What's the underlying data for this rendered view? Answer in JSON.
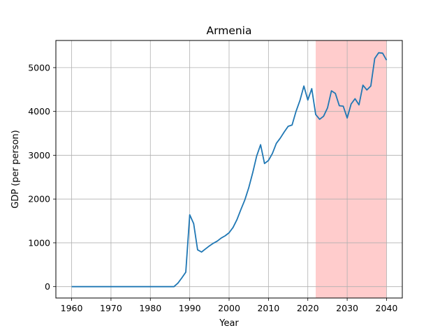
{
  "chart_data": {
    "type": "line",
    "title": "Armenia",
    "xlabel": "Year",
    "ylabel": "GDP (per person)",
    "xlim": [
      1956,
      2044
    ],
    "ylim": [
      -260,
      5620
    ],
    "grid": true,
    "x_ticks": [
      1960,
      1970,
      1980,
      1990,
      2000,
      2010,
      2020,
      2030,
      2040
    ],
    "y_ticks": [
      0,
      1000,
      2000,
      3000,
      4000,
      5000
    ],
    "highlight_span": {
      "x_start": 2022,
      "x_end": 2040,
      "color": "#ffcccc"
    },
    "line_color": "#1f77b4",
    "series": [
      {
        "x": [
          1960,
          1961,
          1962,
          1963,
          1964,
          1965,
          1966,
          1967,
          1968,
          1969,
          1970,
          1971,
          1972,
          1973,
          1974,
          1975,
          1976,
          1977,
          1978,
          1979,
          1980,
          1981,
          1982,
          1983,
          1984,
          1985,
          1986,
          1987,
          1988,
          1989,
          1990,
          1991,
          1992,
          1993,
          1994,
          1995,
          1996,
          1997,
          1998,
          1999,
          2000,
          2001,
          2002,
          2003,
          2004,
          2005,
          2006,
          2007,
          2008,
          2009,
          2010,
          2011,
          2012,
          2013,
          2014,
          2015,
          2016,
          2017,
          2018,
          2019,
          2020,
          2021,
          2022,
          2023,
          2024,
          2025,
          2026,
          2027,
          2028,
          2029,
          2030,
          2031,
          2032,
          2033,
          2034,
          2035,
          2036,
          2037,
          2038,
          2039,
          2040
        ],
        "values": [
          0,
          0,
          0,
          0,
          0,
          0,
          0,
          0,
          0,
          0,
          0,
          0,
          0,
          0,
          0,
          0,
          0,
          0,
          0,
          0,
          0,
          0,
          0,
          0,
          0,
          0,
          0,
          80,
          200,
          330,
          1640,
          1440,
          840,
          790,
          860,
          930,
          990,
          1040,
          1110,
          1160,
          1230,
          1350,
          1530,
          1760,
          1980,
          2260,
          2600,
          2980,
          3240,
          2810,
          2880,
          3040,
          3270,
          3390,
          3530,
          3660,
          3690,
          4000,
          4250,
          4580,
          4260,
          4520,
          3930,
          3820,
          3890,
          4080,
          4470,
          4410,
          4130,
          4120,
          3850,
          4170,
          4290,
          4150,
          4600,
          4490,
          4580,
          5210,
          5340,
          5330,
          5170
        ]
      }
    ]
  }
}
